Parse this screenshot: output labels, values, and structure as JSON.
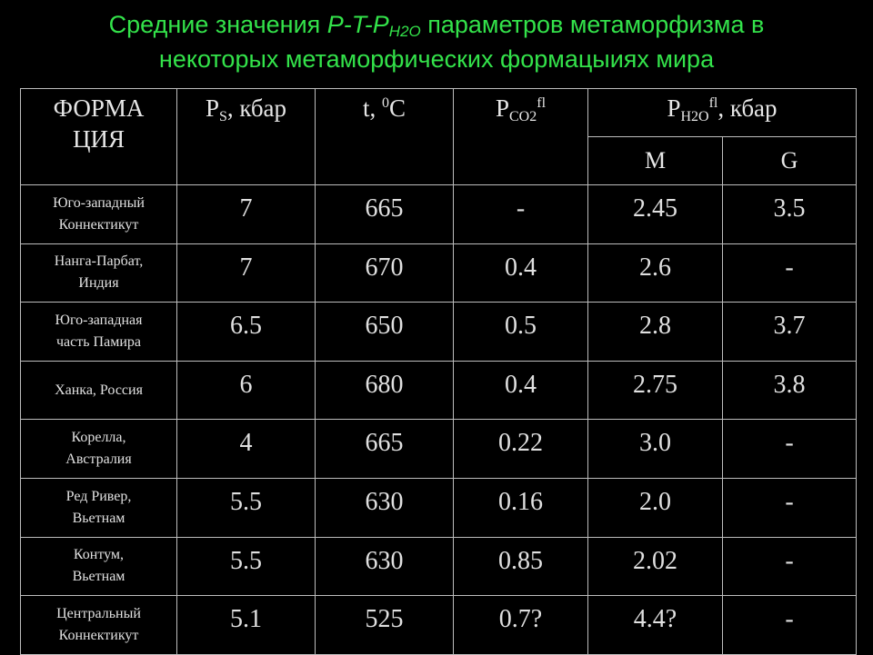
{
  "title": {
    "line1_a": "Средние значения ",
    "line1_b": "P-T-P",
    "line1_sub": "H2O",
    "line1_c": " параметров метаморфизма в",
    "line2": "некоторых метаморфических формацыиях мира"
  },
  "table": {
    "headers": {
      "formation_1": "ФОРМА",
      "formation_2": "ЦИЯ",
      "ps_p": "P",
      "ps_sub": "S",
      "ps_rest": ", кбар",
      "t_main": "t, ",
      "t_sup": "0",
      "t_unit": "C",
      "pco2_p": "P",
      "pco2_sub": "CO2",
      "pco2_sup": "fl",
      "ph2o_p": "P",
      "ph2o_sub": "H2O",
      "ph2o_sup": "fl",
      "ph2o_rest": ", кбар",
      "m": "M",
      "g": "G"
    },
    "rows": [
      {
        "name1": "Юго-западный",
        "name2": "Коннектикут",
        "ps": "7",
        "t": "665",
        "pco2": "-",
        "m": "2.45",
        "g": "3.5"
      },
      {
        "name1": "Нанга-Парбат,",
        "name2": "Индия",
        "ps": "7",
        "t": "670",
        "pco2": "0.4",
        "m": "2.6",
        "g": "-"
      },
      {
        "name1": "Юго-западная",
        "name2": "часть Памира",
        "ps": "6.5",
        "t": "650",
        "pco2": "0.5",
        "m": "2.8",
        "g": "3.7"
      },
      {
        "name1": "Ханка, Россия",
        "name2": "",
        "ps": "6",
        "t": "680",
        "pco2": "0.4",
        "m": "2.75",
        "g": "3.8"
      },
      {
        "name1": "Корелла,",
        "name2": "Австралия",
        "ps": "4",
        "t": "665",
        "pco2": "0.22",
        "m": "3.0",
        "g": "-"
      },
      {
        "name1": "Ред Ривер,",
        "name2": "Вьетнам",
        "ps": "5.5",
        "t": "630",
        "pco2": "0.16",
        "m": "2.0",
        "g": "-"
      },
      {
        "name1": "Контум,",
        "name2": "Вьетнам",
        "ps": "5.5",
        "t": "630",
        "pco2": "0.85",
        "m": "2.02",
        "g": "-"
      },
      {
        "name1": "Центральный",
        "name2": "Коннектикут",
        "ps": "5.1",
        "t": "525",
        "pco2": "0.7?",
        "m": "4.4?",
        "g": "-"
      }
    ]
  }
}
